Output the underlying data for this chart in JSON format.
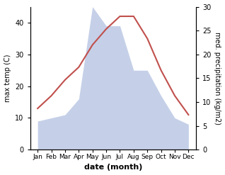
{
  "months": [
    "Jan",
    "Feb",
    "Mar",
    "Apr",
    "May",
    "Jun",
    "Jul",
    "Aug",
    "Sep",
    "Oct",
    "Nov",
    "Dec"
  ],
  "temp": [
    13,
    17,
    22,
    26,
    33,
    38,
    42,
    42,
    35,
    25,
    17,
    11
  ],
  "precip": [
    9,
    10,
    11,
    16,
    45,
    39,
    39,
    25,
    25,
    17,
    10,
    8
  ],
  "temp_color": "#c0504d",
  "precip_fill_color": "#c5d0e8",
  "left_ylim": [
    0,
    45
  ],
  "right_ylim": [
    0,
    30
  ],
  "left_yticks": [
    0,
    10,
    20,
    30,
    40
  ],
  "right_yticks": [
    0,
    5,
    10,
    15,
    20,
    25,
    30
  ],
  "xlabel": "date (month)",
  "ylabel_left": "max temp (C)",
  "ylabel_right": "med. precipitation (kg/m2)",
  "figsize": [
    3.18,
    2.47
  ],
  "dpi": 100
}
